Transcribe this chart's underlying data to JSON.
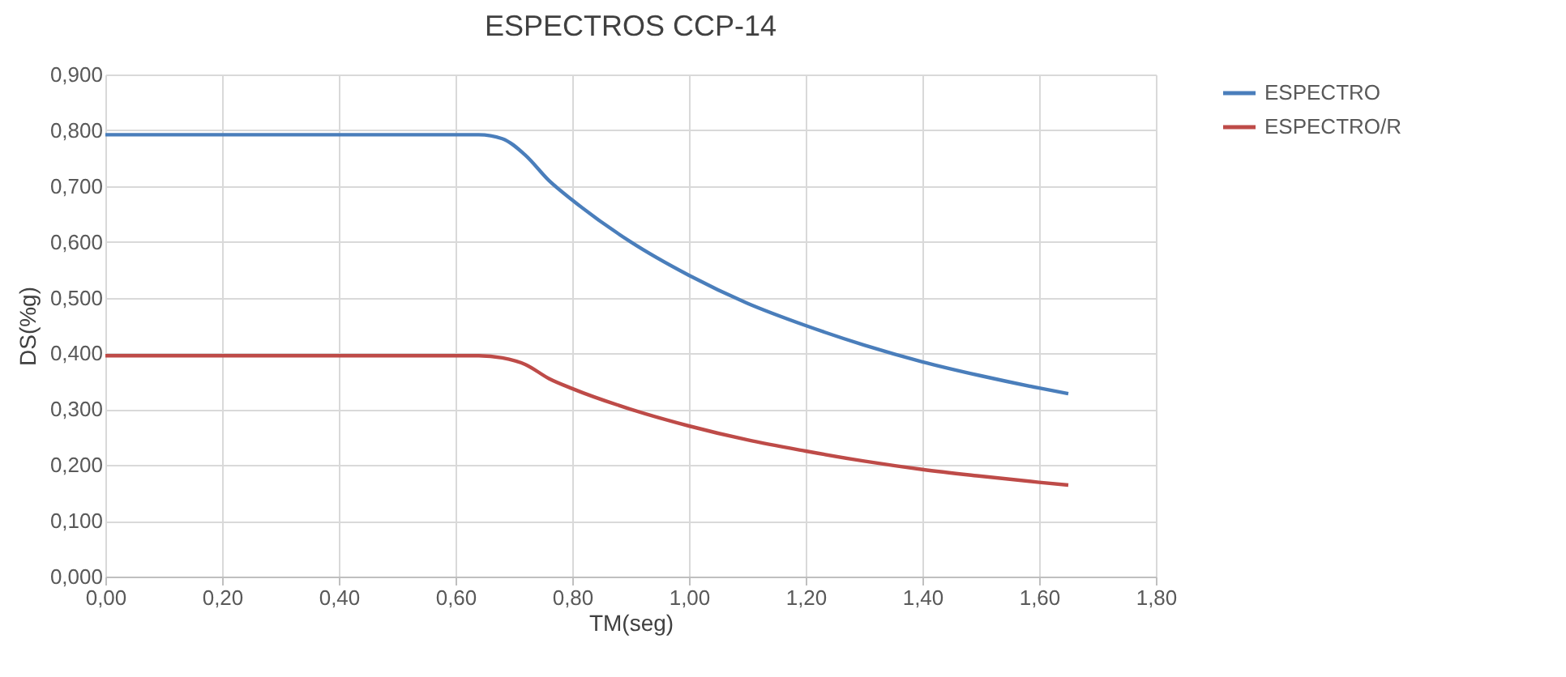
{
  "chart_data": {
    "type": "line",
    "title": "ESPECTROS CCP-14",
    "xlabel": "TM(seg)",
    "ylabel": "DS(%g)",
    "x": [
      0,
      0.6,
      0.64,
      0.68,
      0.72,
      0.76,
      0.8,
      0.9,
      1.0,
      1.1,
      1.2,
      1.3,
      1.4,
      1.5,
      1.6,
      1.65
    ],
    "series": [
      {
        "name": "ESPECTRO",
        "color": "#4a7ebb",
        "values": [
          0.792,
          0.792,
          0.792,
          0.785,
          0.755,
          0.71,
          0.675,
          0.6,
          0.54,
          0.49,
          0.45,
          0.415,
          0.385,
          0.36,
          0.338,
          0.328
        ]
      },
      {
        "name": "ESPECTRO/R",
        "color": "#be4b48",
        "values": [
          0.396,
          0.396,
          0.396,
          0.392,
          0.38,
          0.355,
          0.337,
          0.3,
          0.27,
          0.245,
          0.225,
          0.207,
          0.192,
          0.18,
          0.169,
          0.164
        ]
      }
    ],
    "xlim": [
      0,
      1.8
    ],
    "ylim": [
      0,
      0.9
    ],
    "xticks": [
      {
        "value": 0,
        "label": "0,00"
      },
      {
        "value": 0.2,
        "label": "0,20"
      },
      {
        "value": 0.4,
        "label": "0,40"
      },
      {
        "value": 0.6,
        "label": "0,60"
      },
      {
        "value": 0.8,
        "label": "0,80"
      },
      {
        "value": 1.0,
        "label": "1,00"
      },
      {
        "value": 1.2,
        "label": "1,20"
      },
      {
        "value": 1.4,
        "label": "1,40"
      },
      {
        "value": 1.6,
        "label": "1,60"
      },
      {
        "value": 1.8,
        "label": "1,80"
      }
    ],
    "yticks": [
      {
        "value": 0,
        "label": "0,000"
      },
      {
        "value": 0.1,
        "label": "0,100"
      },
      {
        "value": 0.2,
        "label": "0,200"
      },
      {
        "value": 0.3,
        "label": "0,300"
      },
      {
        "value": 0.4,
        "label": "0,400"
      },
      {
        "value": 0.5,
        "label": "0,500"
      },
      {
        "value": 0.6,
        "label": "0,600"
      },
      {
        "value": 0.7,
        "label": "0,700"
      },
      {
        "value": 0.8,
        "label": "0,800"
      },
      {
        "value": 0.9,
        "label": "0,900"
      }
    ],
    "grid": true,
    "legend": "right",
    "marker": "none",
    "line_style": "solid"
  }
}
